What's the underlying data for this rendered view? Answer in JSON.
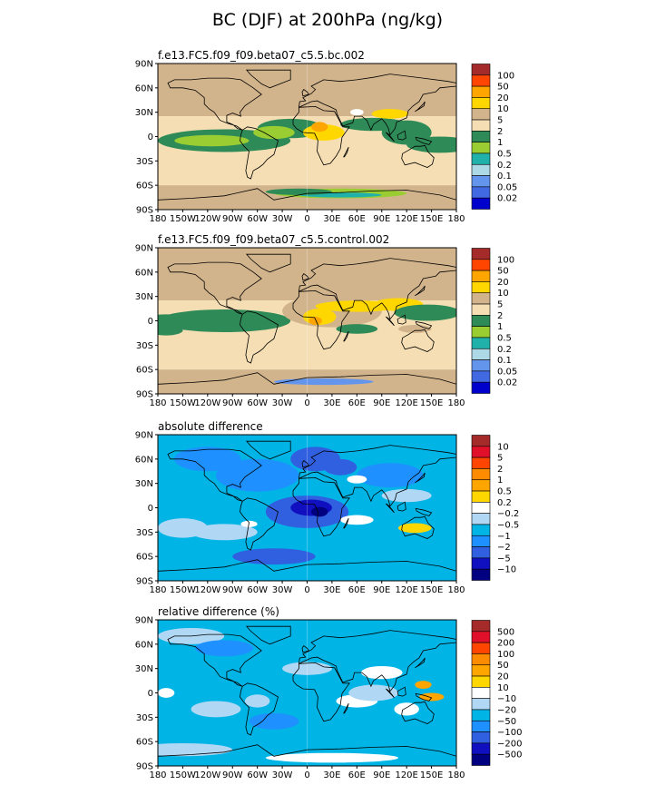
{
  "title": "BC (DJF) at 200hPa (ng/kg)",
  "chart_data": [
    {
      "type": "heatmap",
      "subtitle": "f.e13.FC5.f09_f09.beta07_c5.5.bc.002",
      "x_ticks": [
        "180",
        "150W",
        "120W",
        "90W",
        "60W",
        "30W",
        "0",
        "30E",
        "60E",
        "90E",
        "120E",
        "150E",
        "180"
      ],
      "y_ticks": [
        "90N",
        "60N",
        "30N",
        "0",
        "30S",
        "60S",
        "90S"
      ],
      "xlim": [
        -180,
        180
      ],
      "ylim": [
        -90,
        90
      ],
      "levels": [
        "100",
        "50",
        "20",
        "10",
        "5",
        "2",
        "1",
        "0.5",
        "0.2",
        "0.1",
        "0.05",
        "0.02"
      ],
      "colors": [
        "#a52a2a",
        "#ff4500",
        "#ffa500",
        "#ffd700",
        "#d2b48c",
        "#f5deb3",
        "#2e8b57",
        "#9acd32",
        "#20b2aa",
        "#add8e6",
        "#6495ed",
        "#4169e1",
        "#0000cd"
      ],
      "field": "bc"
    },
    {
      "type": "heatmap",
      "subtitle": "f.e13.FC5.f09_f09.beta07_c5.5.control.002",
      "x_ticks": [
        "180",
        "150W",
        "120W",
        "90W",
        "60W",
        "30W",
        "0",
        "30E",
        "60E",
        "90E",
        "120E",
        "150E",
        "180"
      ],
      "y_ticks": [
        "90N",
        "60N",
        "30N",
        "0",
        "30S",
        "60S",
        "90S"
      ],
      "xlim": [
        -180,
        180
      ],
      "ylim": [
        -90,
        90
      ],
      "levels": [
        "100",
        "50",
        "20",
        "10",
        "5",
        "2",
        "1",
        "0.5",
        "0.2",
        "0.1",
        "0.05",
        "0.02"
      ],
      "colors": [
        "#a52a2a",
        "#ff4500",
        "#ffa500",
        "#ffd700",
        "#d2b48c",
        "#f5deb3",
        "#2e8b57",
        "#9acd32",
        "#20b2aa",
        "#add8e6",
        "#6495ed",
        "#4169e1",
        "#0000cd"
      ],
      "field": "control"
    },
    {
      "type": "heatmap",
      "subtitle": "absolute difference",
      "x_ticks": [
        "180",
        "150W",
        "120W",
        "90W",
        "60W",
        "30W",
        "0",
        "30E",
        "60E",
        "90E",
        "120E",
        "150E",
        "180"
      ],
      "y_ticks": [
        "90N",
        "60N",
        "30N",
        "0",
        "30S",
        "60S",
        "90S"
      ],
      "xlim": [
        -180,
        180
      ],
      "ylim": [
        -90,
        90
      ],
      "levels": [
        "10",
        "5",
        "2",
        "1",
        "0.5",
        "0.2",
        "−0.2",
        "−0.5",
        "−1",
        "−2",
        "−5",
        "−10"
      ],
      "colors": [
        "#a52a2a",
        "#e0102a",
        "#ff4500",
        "#ff8c00",
        "#ffa500",
        "#ffd700",
        "#ffffff",
        "#b0d8f5",
        "#00b4e6",
        "#1e90ff",
        "#3060e0",
        "#1010c0",
        "#000080"
      ],
      "field": "absdiff"
    },
    {
      "type": "heatmap",
      "subtitle": "relative difference (%)",
      "x_ticks": [
        "180",
        "150W",
        "120W",
        "90W",
        "60W",
        "30W",
        "0",
        "30E",
        "60E",
        "90E",
        "120E",
        "150E",
        "180"
      ],
      "y_ticks": [
        "90N",
        "60N",
        "30N",
        "0",
        "30S",
        "60S",
        "90S"
      ],
      "xlim": [
        -180,
        180
      ],
      "ylim": [
        -90,
        90
      ],
      "levels": [
        "500",
        "200",
        "100",
        "50",
        "20",
        "10",
        "−10",
        "−20",
        "−50",
        "−100",
        "−200",
        "−500"
      ],
      "colors": [
        "#a52a2a",
        "#e0102a",
        "#ff4500",
        "#ff8c00",
        "#ffa500",
        "#ffd700",
        "#ffffff",
        "#b0d8f5",
        "#00b4e6",
        "#1e90ff",
        "#3060e0",
        "#1010c0",
        "#000080"
      ],
      "field": "reldiff"
    }
  ]
}
